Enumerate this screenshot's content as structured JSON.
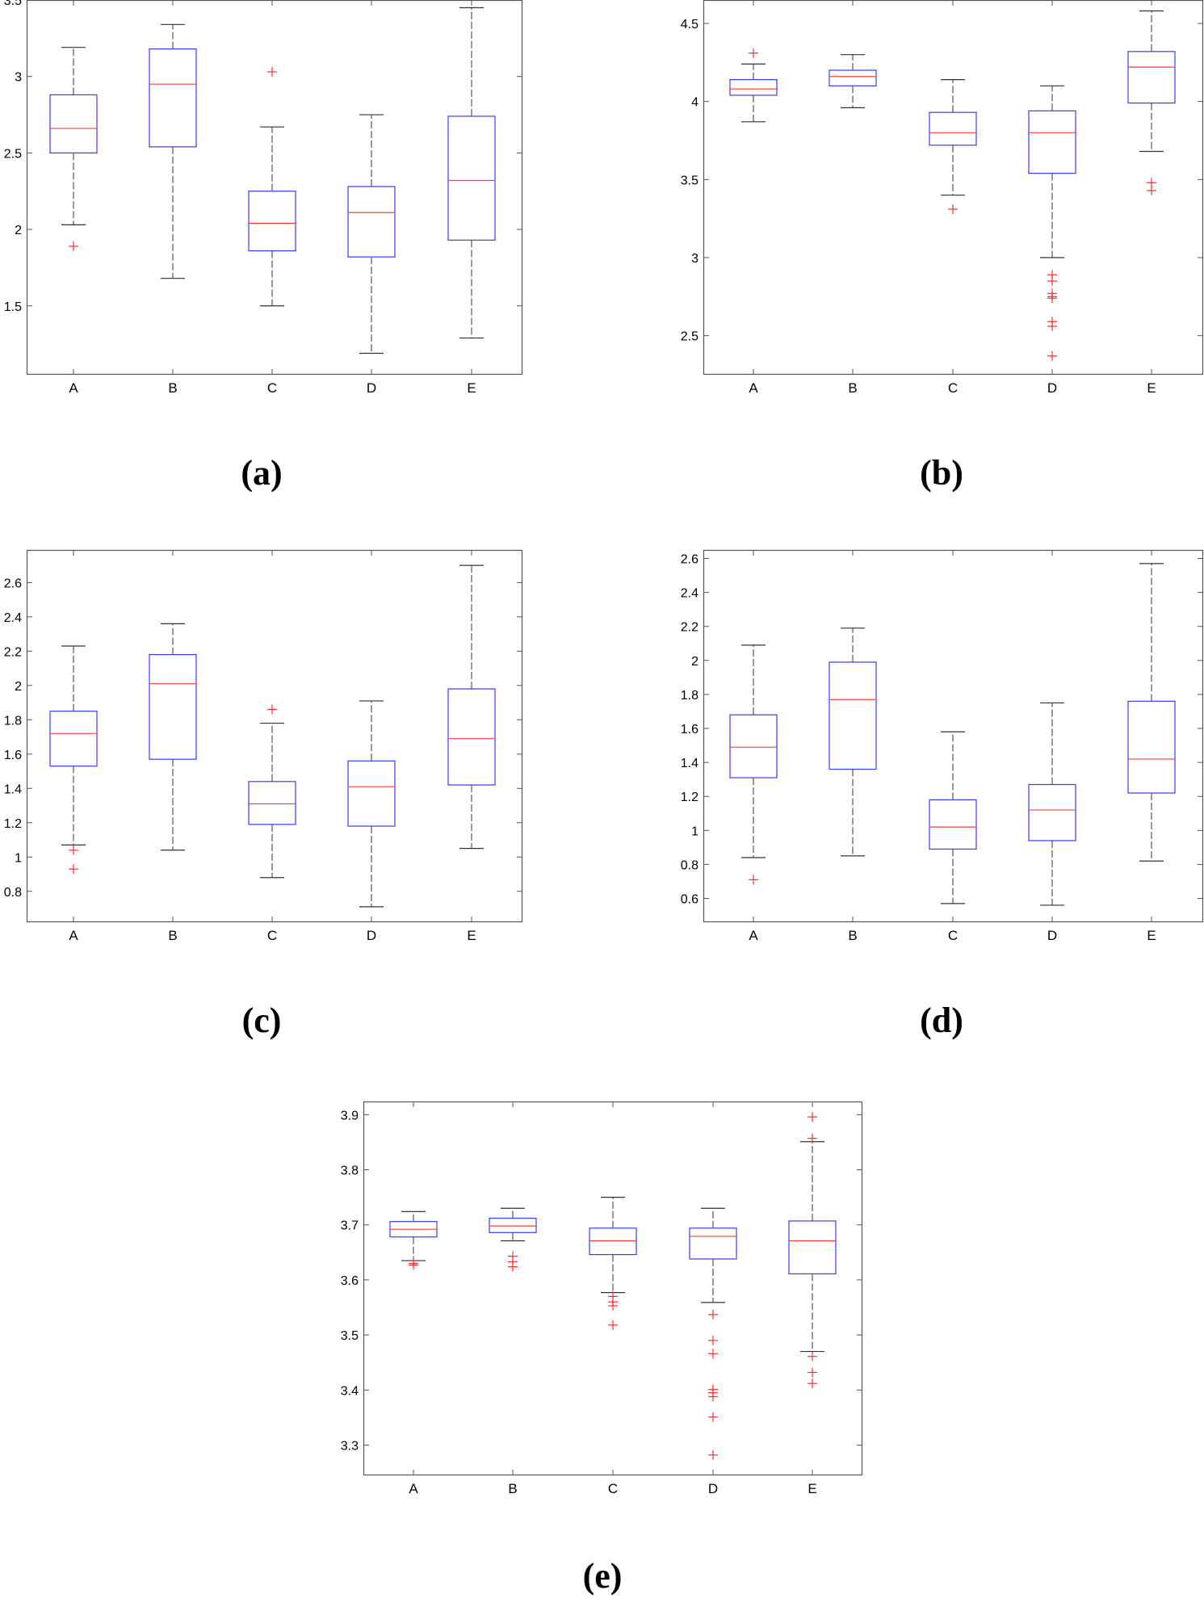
{
  "colors": {
    "axis": "#555555",
    "box": "#3a3aff",
    "median": "#ff3b3b",
    "whisker": "#333333",
    "outlier": "#ff2d2d"
  },
  "chart_data": [
    {
      "id": "a",
      "type": "box",
      "panel_label": "(a)",
      "categories": [
        "A",
        "B",
        "C",
        "D",
        "E"
      ],
      "ylim": [
        1.05,
        3.5
      ],
      "yticks": [
        1.5,
        2,
        2.5,
        3,
        3.5
      ],
      "ytick_labels": [
        "1.5",
        "2",
        "2.5",
        "3",
        "3.5"
      ],
      "boxes": [
        {
          "whisker_low": 2.03,
          "q1": 2.5,
          "median": 2.66,
          "q3": 2.88,
          "whisker_high": 3.19,
          "outliers": [
            1.89
          ]
        },
        {
          "whisker_low": 1.68,
          "q1": 2.54,
          "median": 2.95,
          "q3": 3.18,
          "whisker_high": 3.34,
          "outliers": []
        },
        {
          "whisker_low": 1.5,
          "q1": 1.86,
          "median": 2.04,
          "q3": 2.25,
          "whisker_high": 2.67,
          "outliers": [
            3.03
          ]
        },
        {
          "whisker_low": 1.19,
          "q1": 1.82,
          "median": 2.11,
          "q3": 2.28,
          "whisker_high": 2.75,
          "outliers": []
        },
        {
          "whisker_low": 1.29,
          "q1": 1.93,
          "median": 2.32,
          "q3": 2.74,
          "whisker_high": 3.45,
          "outliers": []
        }
      ]
    },
    {
      "id": "b",
      "type": "box",
      "panel_label": "(b)",
      "categories": [
        "A",
        "B",
        "C",
        "D",
        "E"
      ],
      "ylim": [
        2.25,
        4.65
      ],
      "yticks": [
        2.5,
        3,
        3.5,
        4,
        4.5
      ],
      "ytick_labels": [
        "2.5",
        "3",
        "3.5",
        "4",
        "4.5"
      ],
      "boxes": [
        {
          "whisker_low": 3.87,
          "q1": 4.04,
          "median": 4.08,
          "q3": 4.14,
          "whisker_high": 4.24,
          "outliers": [
            4.31
          ]
        },
        {
          "whisker_low": 3.96,
          "q1": 4.1,
          "median": 4.16,
          "q3": 4.2,
          "whisker_high": 4.3,
          "outliers": []
        },
        {
          "whisker_low": 3.4,
          "q1": 3.72,
          "median": 3.8,
          "q3": 3.93,
          "whisker_high": 4.14,
          "outliers": [
            3.31
          ]
        },
        {
          "whisker_low": 3.0,
          "q1": 3.54,
          "median": 3.8,
          "q3": 3.94,
          "whisker_high": 4.1,
          "outliers": [
            2.89,
            2.85,
            2.77,
            2.75,
            2.74,
            2.59,
            2.56,
            2.37
          ]
        },
        {
          "whisker_low": 3.68,
          "q1": 3.99,
          "median": 4.22,
          "q3": 4.32,
          "whisker_high": 4.58,
          "outliers": [
            3.48,
            3.43
          ]
        }
      ]
    },
    {
      "id": "c",
      "type": "box",
      "panel_label": "(c)",
      "categories": [
        "A",
        "B",
        "C",
        "D",
        "E"
      ],
      "ylim": [
        0.62,
        2.79
      ],
      "yticks": [
        0.8,
        1,
        1.2,
        1.4,
        1.6,
        1.8,
        2,
        2.2,
        2.4,
        2.6
      ],
      "ytick_labels": [
        "0.8",
        "1",
        "1.2",
        "1.4",
        "1.6",
        "1.8",
        "2",
        "2.2",
        "2.4",
        "2.6"
      ],
      "boxes": [
        {
          "whisker_low": 1.07,
          "q1": 1.53,
          "median": 1.72,
          "q3": 1.85,
          "whisker_high": 2.23,
          "outliers": [
            1.04,
            0.93
          ]
        },
        {
          "whisker_low": 1.04,
          "q1": 1.57,
          "median": 2.01,
          "q3": 2.18,
          "whisker_high": 2.36,
          "outliers": []
        },
        {
          "whisker_low": 0.88,
          "q1": 1.19,
          "median": 1.31,
          "q3": 1.44,
          "whisker_high": 1.78,
          "outliers": [
            1.86
          ]
        },
        {
          "whisker_low": 0.71,
          "q1": 1.18,
          "median": 1.41,
          "q3": 1.56,
          "whisker_high": 1.91,
          "outliers": []
        },
        {
          "whisker_low": 1.05,
          "q1": 1.42,
          "median": 1.69,
          "q3": 1.98,
          "whisker_high": 2.7,
          "outliers": []
        }
      ]
    },
    {
      "id": "d",
      "type": "box",
      "panel_label": "(d)",
      "categories": [
        "A",
        "B",
        "C",
        "D",
        "E"
      ],
      "ylim": [
        0.46,
        2.65
      ],
      "yticks": [
        0.6,
        0.8,
        1,
        1.2,
        1.4,
        1.6,
        1.8,
        2,
        2.2,
        2.4,
        2.6
      ],
      "ytick_labels": [
        "0.6",
        "0.8",
        "1",
        "1.2",
        "1.4",
        "1.6",
        "1.8",
        "2",
        "2.2",
        "2.4",
        "2.6"
      ],
      "boxes": [
        {
          "whisker_low": 0.84,
          "q1": 1.31,
          "median": 1.49,
          "q3": 1.68,
          "whisker_high": 2.09,
          "outliers": [
            0.71
          ]
        },
        {
          "whisker_low": 0.85,
          "q1": 1.36,
          "median": 1.77,
          "q3": 1.99,
          "whisker_high": 2.19,
          "outliers": []
        },
        {
          "whisker_low": 0.57,
          "q1": 0.89,
          "median": 1.02,
          "q3": 1.18,
          "whisker_high": 1.58,
          "outliers": []
        },
        {
          "whisker_low": 0.56,
          "q1": 0.94,
          "median": 1.12,
          "q3": 1.27,
          "whisker_high": 1.75,
          "outliers": []
        },
        {
          "whisker_low": 0.82,
          "q1": 1.22,
          "median": 1.42,
          "q3": 1.76,
          "whisker_high": 2.57,
          "outliers": []
        }
      ]
    },
    {
      "id": "e",
      "type": "box",
      "panel_label": "(e)",
      "categories": [
        "A",
        "B",
        "C",
        "D",
        "E"
      ],
      "ylim": [
        3.245,
        3.924
      ],
      "yticks": [
        3.3,
        3.4,
        3.5,
        3.6,
        3.7,
        3.8,
        3.9
      ],
      "ytick_labels": [
        "3.3",
        "3.4",
        "3.5",
        "3.6",
        "3.7",
        "3.8",
        "3.9"
      ],
      "boxes": [
        {
          "whisker_low": 3.635,
          "q1": 3.678,
          "median": 3.692,
          "q3": 3.706,
          "whisker_high": 3.724,
          "outliers": [
            3.63,
            3.627
          ]
        },
        {
          "whisker_low": 3.671,
          "q1": 3.686,
          "median": 3.698,
          "q3": 3.712,
          "whisker_high": 3.73,
          "outliers": [
            3.643,
            3.633,
            3.624
          ]
        },
        {
          "whisker_low": 3.577,
          "q1": 3.646,
          "median": 3.671,
          "q3": 3.694,
          "whisker_high": 3.75,
          "outliers": [
            3.57,
            3.56,
            3.553,
            3.518
          ]
        },
        {
          "whisker_low": 3.559,
          "q1": 3.638,
          "median": 3.679,
          "q3": 3.694,
          "whisker_high": 3.73,
          "outliers": [
            3.537,
            3.49,
            3.466,
            3.401,
            3.395,
            3.388,
            3.351,
            3.282
          ]
        },
        {
          "whisker_low": 3.47,
          "q1": 3.611,
          "median": 3.671,
          "q3": 3.707,
          "whisker_high": 3.851,
          "outliers": [
            3.896,
            3.857,
            3.461,
            3.432,
            3.412
          ]
        }
      ]
    }
  ]
}
